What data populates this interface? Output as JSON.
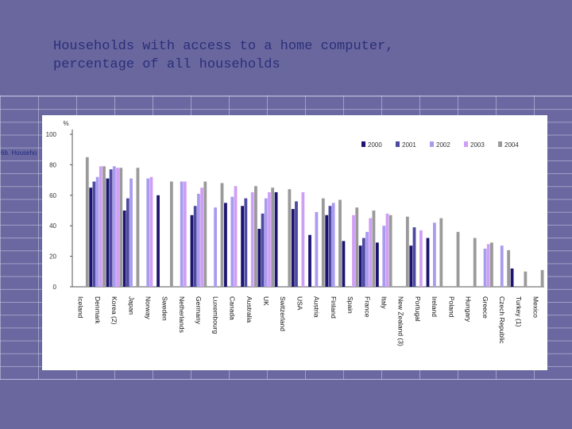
{
  "title_lines": [
    "Households with access to a home computer,",
    "percentage of all households"
  ],
  "side_label": "6b. Househo",
  "colors": {
    "2000": "#1c1470",
    "2001": "#4d4aa0",
    "2002": "#a99bf0",
    "2003": "#cf9ff5",
    "2004": "#9a9a9a"
  },
  "chart_data": {
    "type": "bar",
    "title": "",
    "ylabel": "%",
    "xlabel": "",
    "ylim": [
      0,
      100
    ],
    "yticks": [
      0,
      20,
      40,
      60,
      80,
      100
    ],
    "grid": false,
    "legend_position": "top-right",
    "categories": [
      "Iceland",
      "Denmark",
      "Korea (2)",
      "Japan",
      "Norway",
      "Sweden",
      "Netherlands",
      "Germany",
      "Luxembourg",
      "Canada",
      "Australia",
      "UK",
      "Switzerland",
      "USA",
      "Austria",
      "Finland",
      "Spain",
      "France",
      "Italy",
      "New Zealand (3)",
      "Portugal",
      "Ireland",
      "Poland",
      "Hungary",
      "Greece",
      "Czech Republic",
      "Turkey (1)",
      "Mexico"
    ],
    "series": [
      {
        "name": "2000",
        "values": [
          null,
          65,
          71,
          50,
          null,
          60,
          null,
          47,
          null,
          55,
          53,
          38,
          62,
          51,
          34,
          47,
          30,
          27,
          29,
          null,
          27,
          32,
          null,
          null,
          null,
          null,
          12,
          null
        ]
      },
      {
        "name": "2001",
        "values": [
          null,
          69,
          77,
          58,
          null,
          null,
          null,
          53,
          null,
          null,
          58,
          48,
          null,
          56,
          null,
          53,
          null,
          32,
          null,
          null,
          39,
          null,
          null,
          null,
          null,
          null,
          null,
          null
        ]
      },
      {
        "name": "2002",
        "values": [
          null,
          72,
          79,
          71,
          71,
          null,
          69,
          61,
          52,
          59,
          null,
          58,
          null,
          null,
          49,
          55,
          null,
          36,
          40,
          null,
          null,
          42,
          null,
          null,
          25,
          27,
          null,
          null
        ]
      },
      {
        "name": "2003",
        "values": [
          null,
          79,
          78,
          null,
          72,
          null,
          69,
          65,
          null,
          66,
          62,
          62,
          null,
          62,
          null,
          null,
          47,
          45,
          48,
          null,
          37,
          null,
          null,
          null,
          28,
          null,
          null,
          null
        ]
      },
      {
        "name": "2004",
        "values": [
          85,
          79,
          78,
          78,
          null,
          69,
          null,
          69,
          68,
          null,
          66,
          65,
          64,
          null,
          58,
          57,
          52,
          50,
          47,
          46,
          null,
          45,
          36,
          32,
          29,
          24,
          10,
          11
        ]
      }
    ]
  }
}
